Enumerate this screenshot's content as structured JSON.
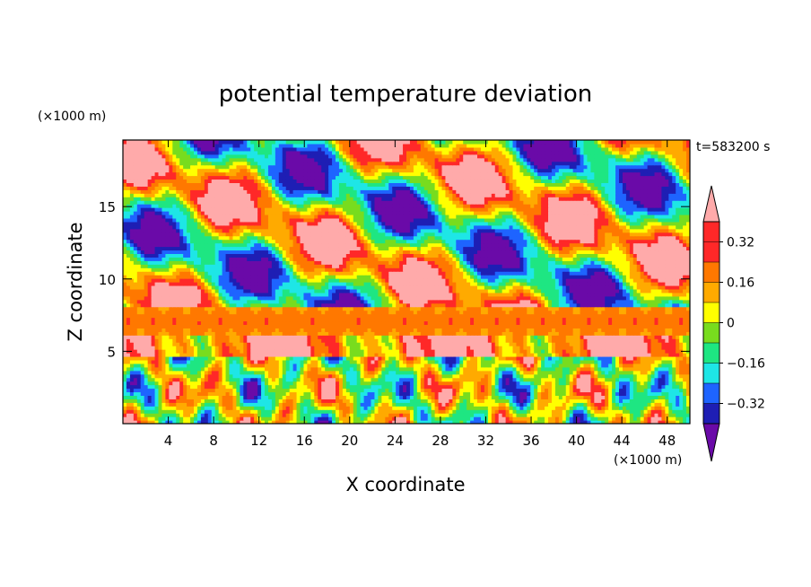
{
  "chart_data": {
    "type": "heatmap",
    "title": "potential temperature deviation",
    "xlabel": "X coordinate",
    "ylabel": "Z coordinate",
    "x_unit_label": "(×1000 m)",
    "y_unit_label": "(×1000 m)",
    "time_label": "t=583200 s",
    "xlim": [
      0,
      50
    ],
    "ylim": [
      0,
      19.6
    ],
    "x_ticks": [
      4,
      8,
      12,
      16,
      20,
      24,
      28,
      32,
      36,
      40,
      44,
      48
    ],
    "y_ticks": [
      5,
      10,
      15
    ],
    "colorbar": {
      "levels": [
        -0.4,
        -0.32,
        -0.24,
        -0.16,
        -0.08,
        0,
        0.08,
        0.16,
        0.24,
        0.32,
        0.4
      ],
      "labeled_levels": [
        0.32,
        0.16,
        0,
        -0.16,
        -0.32
      ],
      "tick_labels": [
        "0.32",
        "0.16",
        "0",
        "−0.16",
        "−0.32"
      ],
      "colors": [
        "#6a0aa8",
        "#1e1eb4",
        "#1e64ff",
        "#1ee6e6",
        "#1ee682",
        "#78dc1e",
        "#ffff00",
        "#ffaa00",
        "#ff7800",
        "#ff2828",
        "#ffaaaa"
      ],
      "extend": "both"
    },
    "field_features": {
      "inversion_band_z": [
        6.2,
        8.0
      ],
      "surface_layer_top_z": 5.0
    }
  }
}
